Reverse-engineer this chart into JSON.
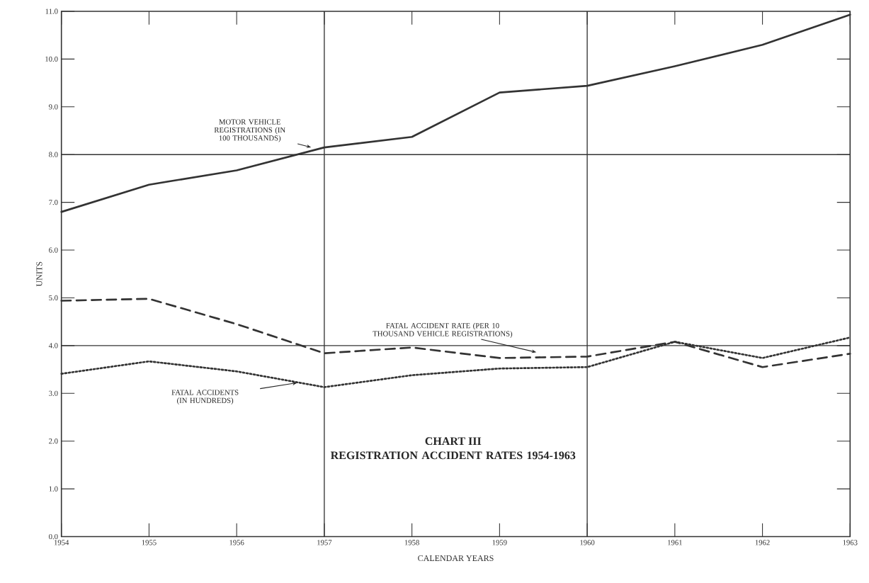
{
  "chart_data": {
    "type": "line",
    "title": "CHART III",
    "subtitle": "REGISTRATION ACCIDENT RATES 1954-1963",
    "xlabel": "CALENDAR YEARS",
    "ylabel": "UNITS",
    "x": [
      1954,
      1955,
      1956,
      1957,
      1958,
      1959,
      1960,
      1961,
      1962,
      1963
    ],
    "series": [
      {
        "name": "MOTOR VEHICLE REGISTRATIONS (IN 100 THOUSANDS)",
        "color": "#333333",
        "line_style": "solid",
        "values": [
          6.8,
          7.37,
          7.67,
          8.15,
          8.37,
          9.3,
          9.44,
          9.85,
          10.3,
          10.93
        ]
      },
      {
        "name": "FATAL ACCIDENT RATE (PER 10 THOUSAND VEHICLE REGISTRATIONS)",
        "color": "#333333",
        "line_style": "dashed",
        "values": [
          4.94,
          4.98,
          4.45,
          3.84,
          3.96,
          3.74,
          3.77,
          4.08,
          3.55,
          3.83
        ]
      },
      {
        "name": "FATAL ACCIDENTS (IN HUNDREDS)",
        "color": "#333333",
        "line_style": "dotted",
        "values": [
          3.41,
          3.67,
          3.46,
          3.13,
          3.38,
          3.52,
          3.55,
          4.08,
          3.74,
          4.17
        ]
      }
    ],
    "xlim": [
      1954,
      1963
    ],
    "ylim": [
      0,
      11
    ],
    "xticks": [
      1954,
      1955,
      1956,
      1957,
      1958,
      1959,
      1960,
      1961,
      1962,
      1963
    ],
    "yticks": [
      {
        "value": 0,
        "label": "0.0"
      },
      {
        "value": 1,
        "label": "1.0"
      },
      {
        "value": 2,
        "label": "2.0"
      },
      {
        "value": 3,
        "label": "3.0"
      },
      {
        "value": 4,
        "label": "4.0"
      },
      {
        "value": 5,
        "label": "5.0"
      },
      {
        "value": 6,
        "label": "6.0"
      },
      {
        "value": 7,
        "label": "7.0"
      },
      {
        "value": 8,
        "label": "8.0"
      },
      {
        "value": 9,
        "label": "9.0"
      },
      {
        "value": 10,
        "label": "10.0"
      },
      {
        "value": 11,
        "label": "11.0"
      }
    ],
    "ref_lines": [
      {
        "axis": "x",
        "value": 1957
      },
      {
        "axis": "x",
        "value": 1960
      },
      {
        "axis": "y",
        "value": 4
      },
      {
        "axis": "y",
        "value": 8
      }
    ],
    "marker": "none"
  }
}
